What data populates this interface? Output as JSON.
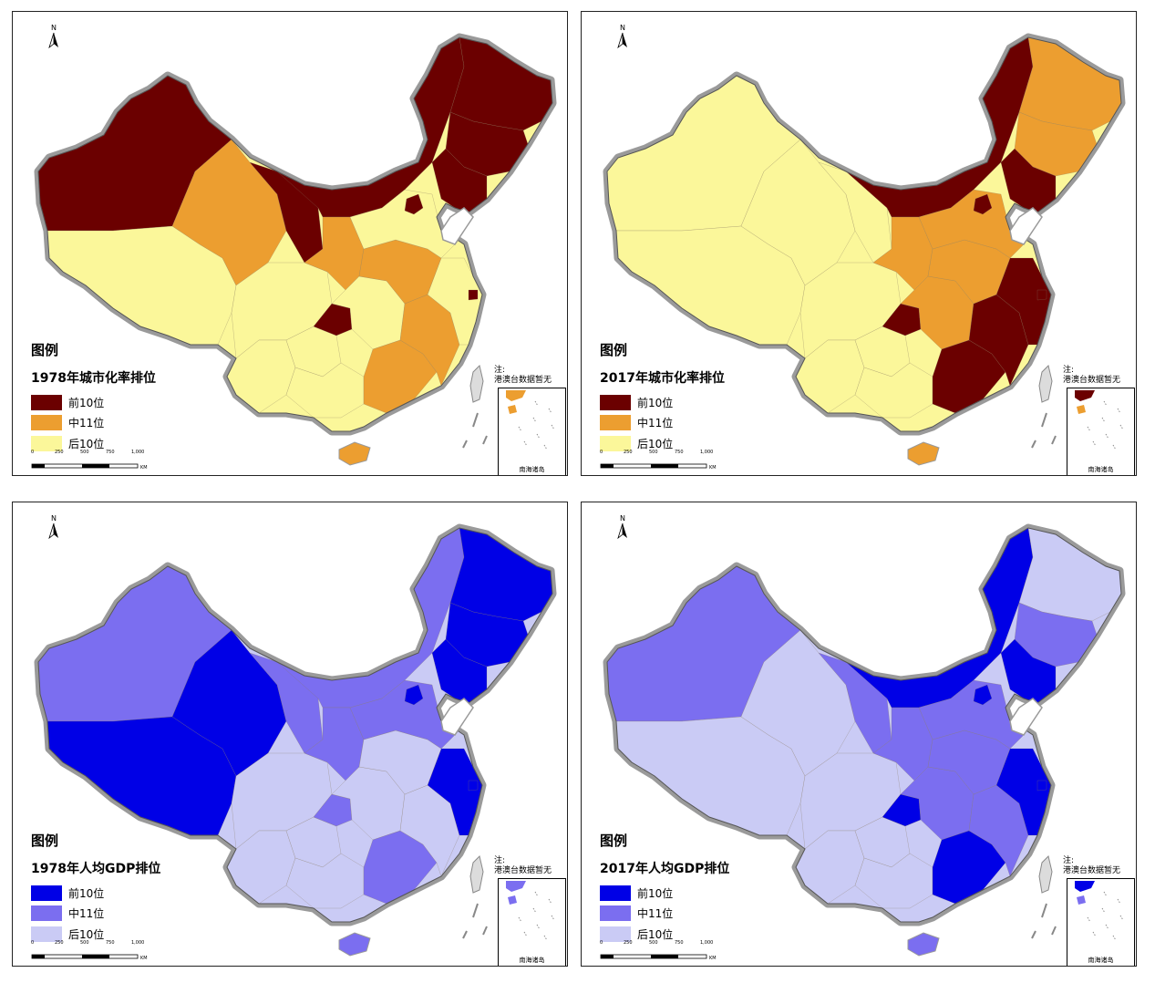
{
  "panels": [
    {
      "id": "p1",
      "legend_title": "图例",
      "legend_subtitle": "1978年城市化率排位",
      "legend_items": [
        {
          "label": "前10位",
          "color": "#6b0000"
        },
        {
          "label": "中11位",
          "color": "#ec9e30"
        },
        {
          "label": "后10位",
          "color": "#fbf79a"
        }
      ],
      "note_line1": "注:",
      "note_line2": "港澳台数据暂无",
      "inset_label": "南海诸岛"
    },
    {
      "id": "p2",
      "legend_title": "图例",
      "legend_subtitle": "2017年城市化率排位",
      "legend_items": [
        {
          "label": "前10位",
          "color": "#6b0000"
        },
        {
          "label": "中11位",
          "color": "#ec9e30"
        },
        {
          "label": "后10位",
          "color": "#fbf79a"
        }
      ],
      "note_line1": "注:",
      "note_line2": "港澳台数据暂无",
      "inset_label": "南海诸岛"
    },
    {
      "id": "p3",
      "legend_title": "图例",
      "legend_subtitle": "1978年人均GDP排位",
      "legend_items": [
        {
          "label": "前10位",
          "color": "#0000e6"
        },
        {
          "label": "中11位",
          "color": "#7b6ef0"
        },
        {
          "label": "后10位",
          "color": "#cacbf5"
        }
      ],
      "note_line1": "注:",
      "note_line2": "港澳台数据暂无",
      "inset_label": "南海诸岛"
    },
    {
      "id": "p4",
      "legend_title": "图例",
      "legend_subtitle": "2017年人均GDP排位",
      "legend_items": [
        {
          "label": "前10位",
          "color": "#0000e6"
        },
        {
          "label": "中11位",
          "color": "#7b6ef0"
        },
        {
          "label": "后10位",
          "color": "#cacbf5"
        }
      ],
      "note_line1": "注:",
      "note_line2": "港澳台数据暂无",
      "inset_label": "南海诸岛"
    }
  ],
  "north_arrow_label": "N",
  "scale_bar": {
    "ticks": [
      "0",
      "250",
      "500",
      "750",
      "1,000"
    ],
    "unit": "KM"
  }
}
